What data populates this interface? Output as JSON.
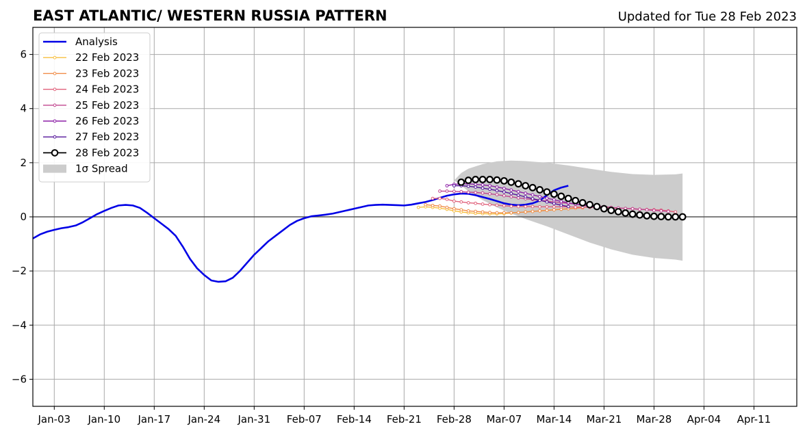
{
  "chart_data": {
    "type": "line",
    "title": "EAST ATLANTIC/ WESTERN RUSSIA PATTERN",
    "subtitle": "Updated for Tue 28 Feb 2023",
    "x_axis": {
      "type": "date",
      "range": [
        "2022-12-31",
        "2023-04-17"
      ],
      "ticks": [
        {
          "date": "2023-01-03",
          "label": "Jan-03"
        },
        {
          "date": "2023-01-10",
          "label": "Jan-10"
        },
        {
          "date": "2023-01-17",
          "label": "Jan-17"
        },
        {
          "date": "2023-01-24",
          "label": "Jan-24"
        },
        {
          "date": "2023-01-31",
          "label": "Jan-31"
        },
        {
          "date": "2023-02-07",
          "label": "Feb-07"
        },
        {
          "date": "2023-02-14",
          "label": "Feb-14"
        },
        {
          "date": "2023-02-21",
          "label": "Feb-21"
        },
        {
          "date": "2023-02-28",
          "label": "Feb-28"
        },
        {
          "date": "2023-03-07",
          "label": "Mar-07"
        },
        {
          "date": "2023-03-14",
          "label": "Mar-14"
        },
        {
          "date": "2023-03-21",
          "label": "Mar-21"
        },
        {
          "date": "2023-03-28",
          "label": "Mar-28"
        },
        {
          "date": "2023-04-04",
          "label": "Apr-04"
        },
        {
          "date": "2023-04-11",
          "label": "Apr-11"
        }
      ]
    },
    "y_axis": {
      "range": [
        -7,
        7
      ],
      "ticks": [
        {
          "value": -6,
          "label": "−6"
        },
        {
          "value": -4,
          "label": "−4"
        },
        {
          "value": -2,
          "label": "−2"
        },
        {
          "value": 0,
          "label": "0"
        },
        {
          "value": 2,
          "label": "2"
        },
        {
          "value": 4,
          "label": "4"
        },
        {
          "value": 6,
          "label": "6"
        }
      ]
    },
    "grid": true,
    "legend_position": "top-left",
    "legend": [
      {
        "label": "Analysis",
        "kind": "line",
        "color": "#0000e6"
      },
      {
        "label": "22 Feb 2023",
        "kind": "marker-line",
        "color": "#f7bf3f"
      },
      {
        "label": "23 Feb 2023",
        "kind": "marker-line",
        "color": "#f08c47"
      },
      {
        "label": "24 Feb 2023",
        "kind": "marker-line",
        "color": "#e0607a"
      },
      {
        "label": "25 Feb 2023",
        "kind": "marker-line",
        "color": "#c0448e"
      },
      {
        "label": "26 Feb 2023",
        "kind": "marker-line",
        "color": "#8c1fa6"
      },
      {
        "label": "27 Feb 2023",
        "kind": "marker-line",
        "color": "#52129a"
      },
      {
        "label": "28 Feb 2023",
        "kind": "open-circle",
        "color": "#000000"
      },
      {
        "label": "1σ Spread",
        "kind": "patch",
        "color": "#cccccc"
      }
    ],
    "analysis": {
      "color": "#0000e6",
      "start": "2022-12-31",
      "values": [
        -0.8,
        -0.65,
        -0.55,
        -0.48,
        -0.42,
        -0.38,
        -0.32,
        -0.2,
        -0.05,
        0.1,
        0.22,
        0.33,
        0.42,
        0.44,
        0.42,
        0.33,
        0.15,
        -0.05,
        -0.25,
        -0.45,
        -0.7,
        -1.1,
        -1.55,
        -1.9,
        -2.15,
        -2.35,
        -2.4,
        -2.38,
        -2.25,
        -2.0,
        -1.7,
        -1.4,
        -1.15,
        -0.9,
        -0.7,
        -0.5,
        -0.3,
        -0.15,
        -0.05,
        0.02,
        0.05,
        0.08,
        0.12,
        0.18,
        0.24,
        0.3,
        0.36,
        0.42,
        0.44,
        0.45,
        0.44,
        0.43,
        0.42,
        0.45,
        0.5,
        0.55,
        0.62,
        0.7,
        0.78,
        0.83,
        0.86,
        0.85,
        0.8,
        0.73,
        0.66,
        0.58,
        0.5,
        0.45,
        0.43,
        0.45,
        0.5,
        0.6,
        0.8,
        0.98,
        1.08,
        1.15
      ]
    },
    "spread": {
      "color": "#cccccc",
      "dates": [
        "2023-02-28",
        "2023-03-01",
        "2023-03-02",
        "2023-03-04",
        "2023-03-06",
        "2023-03-08",
        "2023-03-10",
        "2023-03-13",
        "2023-03-16",
        "2023-03-19",
        "2023-03-22",
        "2023-03-25",
        "2023-03-28",
        "2023-03-31",
        "2023-04-01"
      ],
      "upper": [
        1.35,
        1.62,
        1.78,
        1.95,
        2.05,
        2.08,
        2.06,
        2.0,
        1.9,
        1.78,
        1.66,
        1.58,
        1.55,
        1.57,
        1.6
      ],
      "lower": [
        1.35,
        1.15,
        0.95,
        0.62,
        0.35,
        0.12,
        -0.08,
        -0.35,
        -0.65,
        -0.95,
        -1.2,
        -1.4,
        -1.52,
        -1.58,
        -1.62
      ]
    },
    "forecasts": [
      {
        "name": "22 Feb 2023",
        "color": "#f7bf3f",
        "start": "2023-02-23",
        "values": [
          0.35,
          0.37,
          0.35,
          0.32,
          0.28,
          0.22,
          0.18,
          0.15,
          0.13,
          0.12,
          0.11,
          0.11,
          0.12,
          0.14,
          0.16,
          0.18,
          0.2,
          0.22,
          0.24,
          0.26,
          0.28,
          0.3,
          0.32,
          0.34
        ]
      },
      {
        "name": "23 Feb 2023",
        "color": "#f08c47",
        "start": "2023-02-24",
        "values": [
          0.45,
          0.42,
          0.4,
          0.35,
          0.3,
          0.26,
          0.22,
          0.2,
          0.18,
          0.16,
          0.15,
          0.15,
          0.15,
          0.16,
          0.18,
          0.2,
          0.22,
          0.24,
          0.26,
          0.28,
          0.3,
          0.32,
          0.33
        ]
      },
      {
        "name": "24 Feb 2023",
        "color": "#e0607a",
        "start": "2023-02-25",
        "values": [
          0.68,
          0.68,
          0.65,
          0.58,
          0.55,
          0.52,
          0.5,
          0.47,
          0.45,
          0.43,
          0.41,
          0.39,
          0.38,
          0.38,
          0.38,
          0.37,
          0.37,
          0.37,
          0.37,
          0.37,
          0.36,
          0.36,
          0.35,
          0.35,
          0.34,
          0.33,
          0.32,
          0.31,
          0.3,
          0.28,
          0.27,
          0.26,
          0.25,
          0.22,
          0.18
        ]
      },
      {
        "name": "25 Feb 2023",
        "color": "#c0448e",
        "start": "2023-02-26",
        "values": [
          0.95,
          0.95,
          0.94,
          0.93,
          0.91,
          0.9,
          0.88,
          0.85,
          0.82,
          0.78,
          0.74,
          0.7,
          0.67,
          0.64,
          0.61,
          0.58,
          0.55,
          0.52,
          0.5,
          0.47,
          0.45,
          0.42,
          0.4,
          0.38,
          0.35,
          0.33,
          0.31,
          0.3,
          0.28,
          0.26,
          0.24,
          0.22,
          0.2
        ]
      },
      {
        "name": "26 Feb 2023",
        "color": "#8c1fa6",
        "start": "2023-02-27",
        "values": [
          1.15,
          1.2,
          1.22,
          1.22,
          1.2,
          1.18,
          1.15,
          1.1,
          1.05,
          0.99,
          0.93,
          0.87,
          0.81,
          0.75,
          0.69,
          0.63,
          0.57,
          0.52,
          0.47,
          0.43,
          0.39,
          0.35,
          0.32
        ]
      },
      {
        "name": "27 Feb 2023",
        "color": "#52129a",
        "start": "2023-02-28",
        "values": [
          1.15,
          1.15,
          1.13,
          1.1,
          1.06,
          1.02,
          0.97,
          0.92,
          0.86,
          0.8,
          0.74,
          0.67,
          0.61,
          0.55,
          0.49,
          0.43,
          0.38
        ]
      }
    ],
    "current_forecast": {
      "name": "28 Feb 2023",
      "color": "#000000",
      "start": "2023-03-01",
      "values": [
        1.28,
        1.35,
        1.38,
        1.38,
        1.38,
        1.36,
        1.33,
        1.28,
        1.22,
        1.15,
        1.08,
        1.0,
        0.92,
        0.84,
        0.76,
        0.68,
        0.6,
        0.52,
        0.45,
        0.38,
        0.3,
        0.24,
        0.19,
        0.14,
        0.1,
        0.07,
        0.04,
        0.02,
        0.01,
        0.0,
        0.0,
        0.0
      ]
    }
  }
}
